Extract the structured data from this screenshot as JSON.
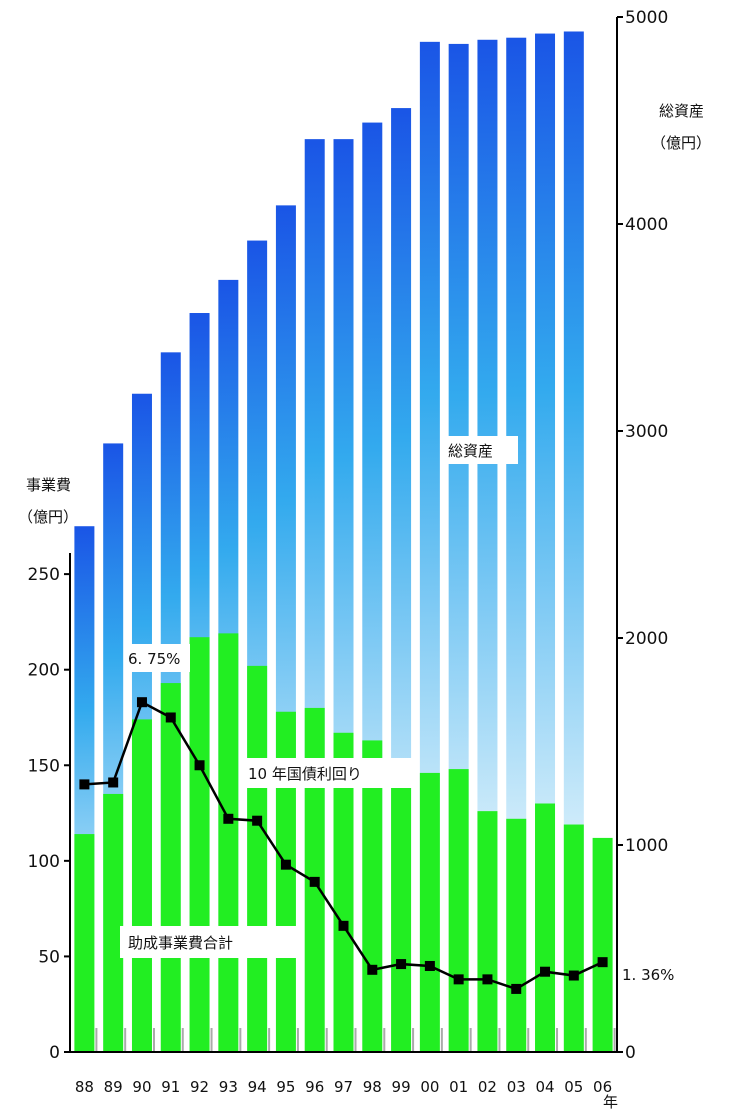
{
  "chart_data": {
    "type": "bar",
    "categories": [
      "88",
      "89",
      "90",
      "91",
      "92",
      "93",
      "94",
      "95",
      "96",
      "97",
      "98",
      "99",
      "00",
      "01",
      "02",
      "03",
      "04",
      "05",
      "06"
    ],
    "x_unit": "年",
    "series": [
      {
        "name": "総資産",
        "axis": "right",
        "kind": "bar",
        "values": [
          2540,
          2940,
          3180,
          3380,
          3570,
          3730,
          3920,
          4090,
          4410,
          4410,
          4490,
          4560,
          4880,
          4870,
          4890,
          4900,
          4920,
          4930,
          null
        ]
      },
      {
        "name": "助成事業費合計",
        "axis": "left",
        "kind": "bar",
        "values": [
          114,
          135,
          174,
          193,
          217,
          219,
          202,
          178,
          180,
          167,
          163,
          153,
          146,
          148,
          126,
          122,
          130,
          119,
          112
        ]
      },
      {
        "name": "10年国債利回り",
        "axis": "left",
        "kind": "line",
        "values": [
          140,
          141,
          183,
          175,
          150,
          122,
          121,
          98,
          89,
          66,
          43,
          46,
          45,
          38,
          38,
          33,
          42,
          40,
          47
        ]
      }
    ],
    "left_axis": {
      "label_line1": "事業費",
      "label_line2": "（億円）",
      "ylim": [
        0,
        260
      ],
      "ticks": [
        0,
        50,
        100,
        150,
        200,
        250
      ]
    },
    "right_axis": {
      "label_line1": "総資産",
      "label_line2": "（億円）",
      "ylim": [
        0,
        5000
      ],
      "ticks": [
        0,
        1000,
        2000,
        3000,
        4000,
        5000
      ]
    },
    "annotations": {
      "line_start": "6. 75%",
      "line_end": "1. 36%",
      "assets_label": "総資産",
      "yield_label": "10 年国債利回り",
      "grants_label": "助成事業費合計"
    },
    "colors": {
      "assets_top": "#1a55e6",
      "assets_mid": "#33aaee",
      "assets_low": "#e8f6fc",
      "grants": "#22ee22",
      "yield_line": "#000000"
    }
  }
}
